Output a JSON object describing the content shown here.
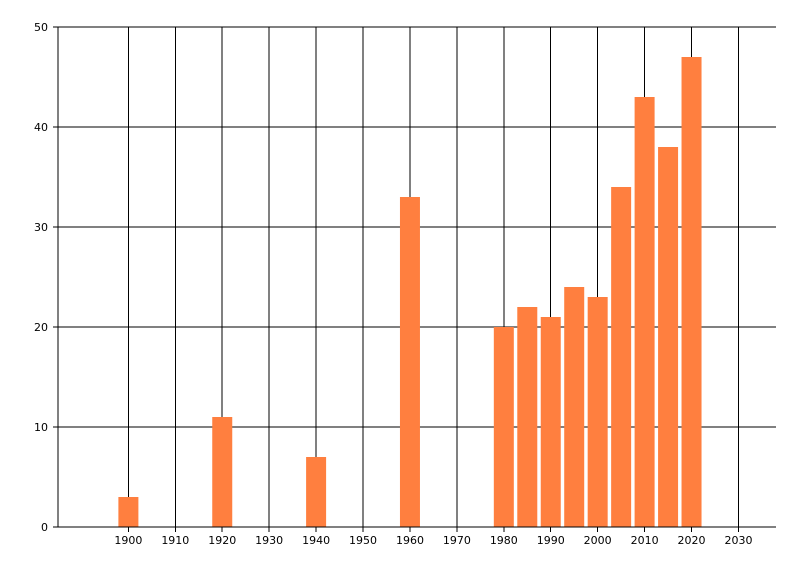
{
  "chart_data": {
    "type": "bar",
    "title": "",
    "xlabel": "",
    "ylabel": "",
    "x": [
      1900,
      1920,
      1940,
      1960,
      1980,
      1985,
      1990,
      1995,
      2000,
      2005,
      2010,
      2015,
      2020
    ],
    "values": [
      3,
      11,
      7,
      33,
      20,
      22,
      21,
      24,
      23,
      34,
      43,
      38,
      47
    ],
    "xlim": [
      1885,
      2038
    ],
    "ylim": [
      0,
      50
    ],
    "x_ticks": [
      1900,
      1910,
      1920,
      1930,
      1940,
      1950,
      1960,
      1970,
      1980,
      1990,
      2000,
      2010,
      2020,
      2030
    ],
    "y_ticks": [
      0,
      10,
      20,
      30,
      40,
      50
    ],
    "grid": true,
    "bar_color": "#ff7f3f",
    "grid_color": "#000000"
  }
}
